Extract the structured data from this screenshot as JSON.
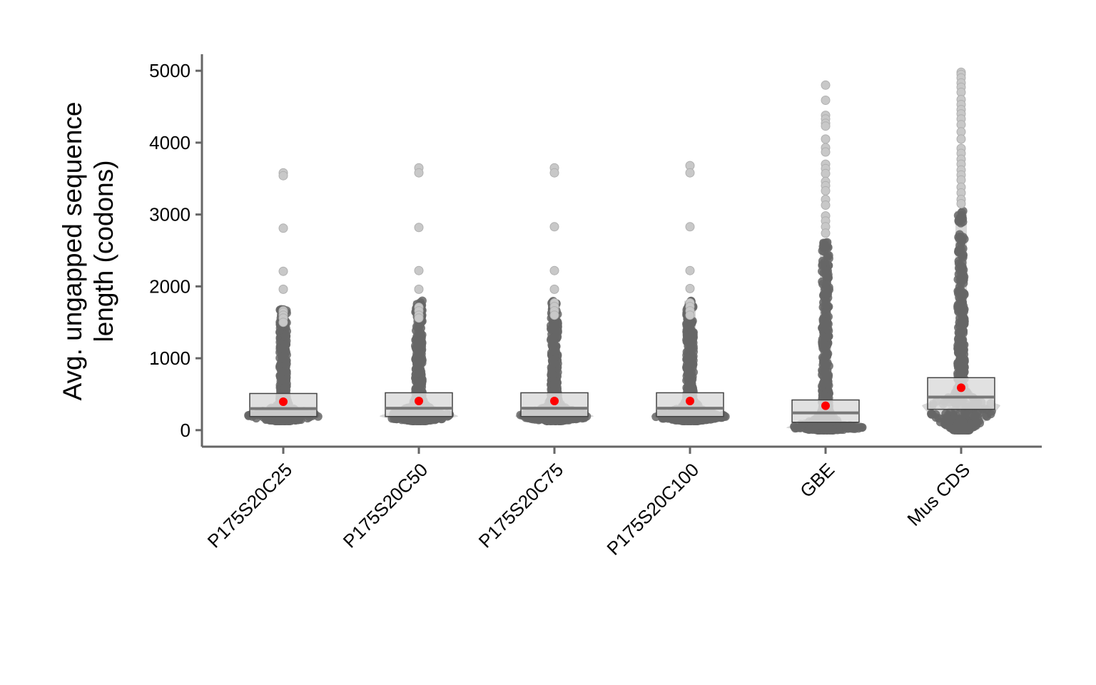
{
  "chart_data": {
    "type": "beeswarm-boxplot",
    "title": "",
    "xlabel": "",
    "ylabel": [
      "Avg. ungapped sequence",
      "length (codons)"
    ],
    "ylim": [
      -230,
      5230
    ],
    "yticks": [
      0,
      1000,
      2000,
      3000,
      4000,
      5000
    ],
    "categories": [
      "P175S20C25",
      "P175S20C50",
      "P175S20C75",
      "P175S20C100",
      "GBE",
      "Mus CDS"
    ],
    "boxes": [
      {
        "q1": 190,
        "median": 300,
        "q3": 510,
        "mean": 395
      },
      {
        "q1": 190,
        "median": 305,
        "q3": 520,
        "mean": 405
      },
      {
        "q1": 190,
        "median": 305,
        "q3": 520,
        "mean": 405
      },
      {
        "q1": 190,
        "median": 305,
        "q3": 520,
        "mean": 405
      },
      {
        "q1": 110,
        "median": 240,
        "q3": 420,
        "mean": 340
      },
      {
        "q1": 290,
        "median": 460,
        "q3": 730,
        "mean": 590
      }
    ],
    "swarm_peak": [
      190,
      190,
      190,
      190,
      30,
      340
    ],
    "swarm_min": [
      130,
      130,
      130,
      130,
      0,
      0
    ],
    "swarm_dense_max": [
      1700,
      1800,
      1800,
      1800,
      2650,
      3050
    ],
    "outliers": [
      [
        3580,
        3540,
        2810,
        2210,
        1960,
        1660,
        1640,
        1600,
        1560,
        1500
      ],
      [
        3650,
        3580,
        2820,
        2220,
        1960,
        1710,
        1660,
        1600,
        1560
      ],
      [
        3650,
        3580,
        2830,
        2220,
        1960,
        1770,
        1720,
        1660,
        1600
      ],
      [
        3680,
        3580,
        2830,
        2220,
        1970,
        1770,
        1720,
        1660,
        1600
      ],
      [
        4800,
        4590,
        4380,
        4330,
        4270,
        4230,
        4050,
        3930,
        3870,
        3700,
        3640,
        3570,
        3460,
        3400,
        3330,
        3210,
        3130,
        2980,
        2910,
        2830,
        2740
      ],
      [
        4980,
        4950,
        4900,
        4830,
        4770,
        4700,
        4600,
        4530,
        4460,
        4400,
        4330,
        4250,
        4150,
        4050,
        3920,
        3850,
        3770,
        3700,
        3620,
        3550,
        3480,
        3380,
        3300,
        3210,
        3150
      ]
    ],
    "colors": {
      "points": "#666666",
      "outliers": "#c8c8c8",
      "swarm_halo": "#d8d8d8",
      "box_fill": "#dcdcdc",
      "box_border": "#444444",
      "median": "#777777",
      "mean": "#ff0000",
      "axis": "#666666"
    },
    "grid": false,
    "legend": "none"
  }
}
